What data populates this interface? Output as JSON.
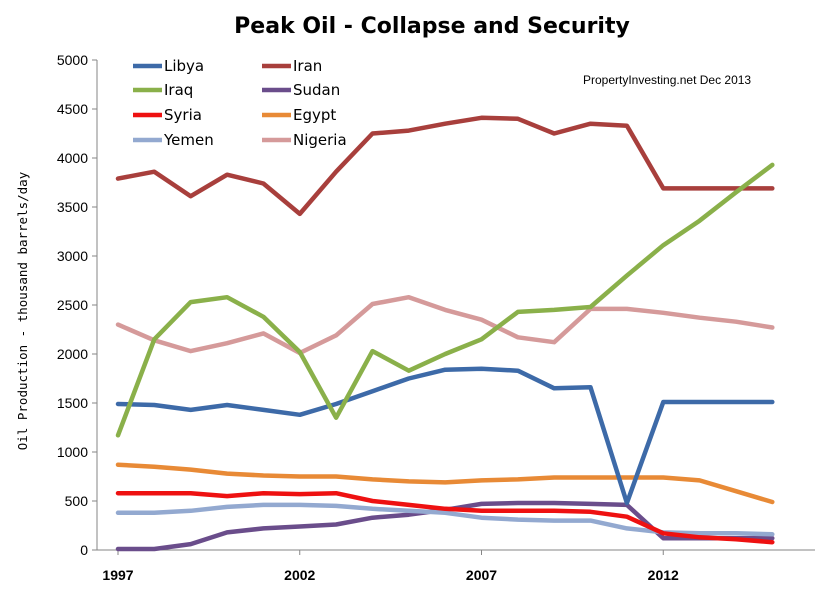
{
  "chart_data": {
    "type": "line",
    "title": "Peak Oil -  Collapse and Security",
    "ylabel": "Oil Production  - thousand  barrels/day",
    "xlabel": "",
    "annotation": "PropertyInvesting.net  Dec 2013",
    "xlim": [
      1997,
      2015
    ],
    "ylim": [
      0,
      5000
    ],
    "x_ticks": [
      "1997",
      "2002",
      "2007",
      "2012"
    ],
    "y_ticks": [
      "0",
      "500",
      "1000",
      "1500",
      "2000",
      "2500",
      "3000",
      "3500",
      "4000",
      "4500",
      "5000"
    ],
    "gridlines": false,
    "legend_position": "top-left",
    "x": [
      1997,
      1998,
      1999,
      2000,
      2001,
      2002,
      2003,
      2004,
      2005,
      2006,
      2007,
      2008,
      2009,
      2010,
      2011,
      2012,
      2013,
      2014,
      2015
    ],
    "series": [
      {
        "name": "Libya",
        "color": "#3d6aa8",
        "values": [
          1490,
          1480,
          1430,
          1480,
          1430,
          1380,
          1490,
          1620,
          1750,
          1840,
          1850,
          1830,
          1650,
          1660,
          480,
          1510,
          1510,
          1510,
          1510
        ]
      },
      {
        "name": "Iran",
        "color": "#a83f3c",
        "values": [
          3790,
          3860,
          3610,
          3830,
          3740,
          3430,
          3860,
          4250,
          4280,
          4350,
          4410,
          4400,
          4250,
          4350,
          4330,
          3690,
          3690,
          3690,
          3690
        ]
      },
      {
        "name": "Iraq",
        "color": "#8ab04a",
        "values": [
          1170,
          2150,
          2530,
          2580,
          2380,
          2020,
          1350,
          2030,
          1830,
          2000,
          2150,
          2430,
          2450,
          2480,
          2800,
          3110,
          3360,
          3650,
          3930
        ]
      },
      {
        "name": "Sudan",
        "color": "#6a4d8b",
        "values": [
          10,
          10,
          60,
          180,
          220,
          240,
          260,
          330,
          360,
          410,
          470,
          480,
          480,
          470,
          460,
          120,
          120,
          120,
          120
        ]
      },
      {
        "name": "Syria",
        "color": "#ee1111",
        "values": [
          580,
          580,
          580,
          550,
          580,
          570,
          580,
          500,
          460,
          420,
          400,
          400,
          400,
          390,
          340,
          170,
          130,
          110,
          80
        ]
      },
      {
        "name": "Egypt",
        "color": "#e88a36",
        "values": [
          870,
          850,
          820,
          780,
          760,
          750,
          750,
          720,
          700,
          690,
          710,
          720,
          740,
          740,
          740,
          740,
          710,
          600,
          490
        ]
      },
      {
        "name": "Yemen",
        "color": "#93a9d0",
        "values": [
          380,
          380,
          400,
          440,
          460,
          460,
          450,
          420,
          400,
          380,
          330,
          310,
          300,
          300,
          220,
          180,
          170,
          170,
          160
        ]
      },
      {
        "name": "Nigeria",
        "color": "#d59a9a",
        "values": [
          2300,
          2140,
          2030,
          2110,
          2210,
          2010,
          2190,
          2510,
          2580,
          2450,
          2350,
          2170,
          2120,
          2460,
          2460,
          2420,
          2370,
          2330,
          2270
        ]
      }
    ]
  }
}
